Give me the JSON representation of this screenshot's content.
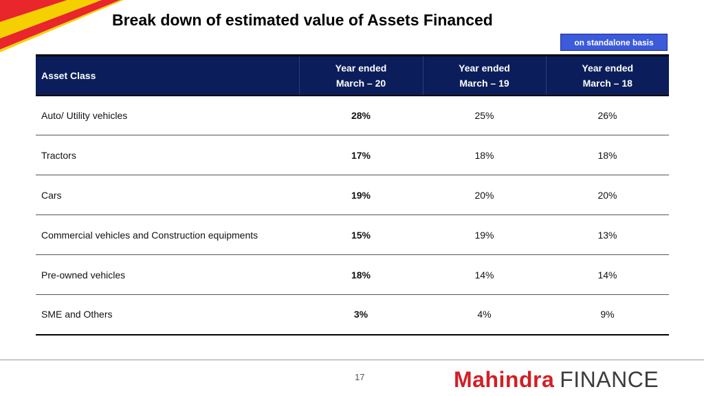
{
  "title": "Break down of estimated value of Assets Financed",
  "badge": "on standalone basis",
  "table": {
    "header": {
      "asset_class": "Asset Class",
      "columns": [
        {
          "line1": "Year ended",
          "line2": "March – 20"
        },
        {
          "line1": "Year ended",
          "line2": "March – 19"
        },
        {
          "line1": "Year ended",
          "line2": "March – 18"
        }
      ]
    },
    "rows": [
      {
        "label": "Auto/ Utility vehicles",
        "values": [
          "28%",
          "25%",
          "26%"
        ]
      },
      {
        "label": "Tractors",
        "values": [
          "17%",
          "18%",
          "18%"
        ]
      },
      {
        "label": "Cars",
        "values": [
          "19%",
          "20%",
          "20%"
        ]
      },
      {
        "label": "Commercial vehicles and Construction equipments",
        "values": [
          "15%",
          "19%",
          "13%"
        ]
      },
      {
        "label": "Pre-owned vehicles",
        "values": [
          "18%",
          "14%",
          "14%"
        ]
      },
      {
        "label": "SME and Others",
        "values": [
          "3%",
          "4%",
          "9%"
        ]
      }
    ]
  },
  "footer": {
    "page_number": "17",
    "logo_brand": "Mahindra",
    "logo_suffix": "FINANCE"
  },
  "colors": {
    "header_bg": "#0b1e5b",
    "badge_bg": "#3b5bdb",
    "brand_red": "#d21f26",
    "corner_yellow": "#f5d000"
  }
}
